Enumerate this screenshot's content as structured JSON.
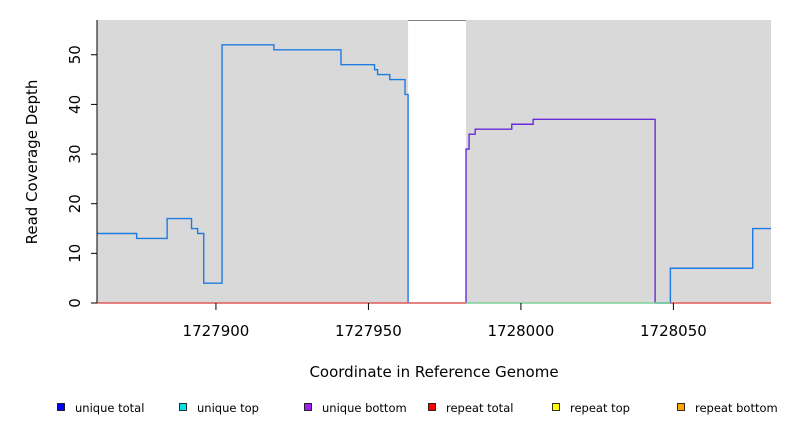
{
  "chart_data": {
    "type": "line",
    "title": "",
    "xlabel": "Coordinate in Reference Genome",
    "ylabel": "Read Coverage Depth",
    "xlim": [
      1727861,
      1728082
    ],
    "ylim": [
      0,
      57
    ],
    "xticks": [
      1727900,
      1727950,
      1728000,
      1728050
    ],
    "yticks": [
      0,
      10,
      20,
      30,
      40,
      50
    ],
    "grid": false,
    "background_color": "#d9d9d9",
    "unmasked_region": [
      1727963,
      1727982
    ],
    "unmasked_color": "#ffffff",
    "legend": {
      "placement": "bottom",
      "entries": [
        {
          "label": "unique total",
          "color": "#0000ff"
        },
        {
          "label": "unique top",
          "color": "#00e5e5"
        },
        {
          "label": "unique bottom",
          "color": "#a020f0"
        },
        {
          "label": "repeat total",
          "color": "#ff0000"
        },
        {
          "label": "repeat top",
          "color": "#ffff00"
        },
        {
          "label": "repeat bottom",
          "color": "#ffa500"
        }
      ]
    },
    "series": [
      {
        "color": "#1e7be0",
        "style": "step",
        "x": [
          1727861,
          1727874,
          1727874,
          1727884,
          1727884,
          1727892,
          1727892,
          1727894,
          1727894,
          1727896,
          1727896,
          1727902,
          1727902,
          1727919,
          1727919,
          1727941,
          1727941,
          1727952,
          1727952,
          1727953,
          1727953,
          1727957,
          1727957,
          1727962,
          1727962,
          1727963,
          1727963
        ],
        "y": [
          14,
          14,
          13,
          13,
          17,
          17,
          15,
          15,
          14,
          14,
          4,
          4,
          52,
          52,
          51,
          51,
          48,
          48,
          47,
          47,
          46,
          46,
          45,
          45,
          42,
          42,
          0
        ]
      },
      {
        "color": "#6a2bd9",
        "style": "step",
        "x": [
          1727982,
          1727982,
          1727983,
          1727983,
          1727985,
          1727985,
          1727997,
          1727997,
          1728004,
          1728004,
          1728044,
          1728044
        ],
        "y": [
          0,
          31,
          31,
          34,
          34,
          35,
          35,
          36,
          36,
          37,
          37,
          0
        ]
      },
      {
        "color": "#1e7be0",
        "style": "step",
        "x": [
          1728044,
          1728049,
          1728049,
          1728076,
          1728076,
          1728082
        ],
        "y": [
          0,
          0,
          7,
          7,
          15,
          15
        ]
      },
      {
        "color": "#e05a5a",
        "style": "line",
        "x": [
          1727861,
          1727982
        ],
        "y": [
          0,
          0
        ]
      },
      {
        "color": "#7ecf9a",
        "style": "line",
        "x": [
          1727982,
          1728049
        ],
        "y": [
          0,
          0
        ]
      },
      {
        "color": "#e05a5a",
        "style": "line",
        "x": [
          1728049,
          1728082
        ],
        "y": [
          0,
          0
        ]
      }
    ]
  }
}
